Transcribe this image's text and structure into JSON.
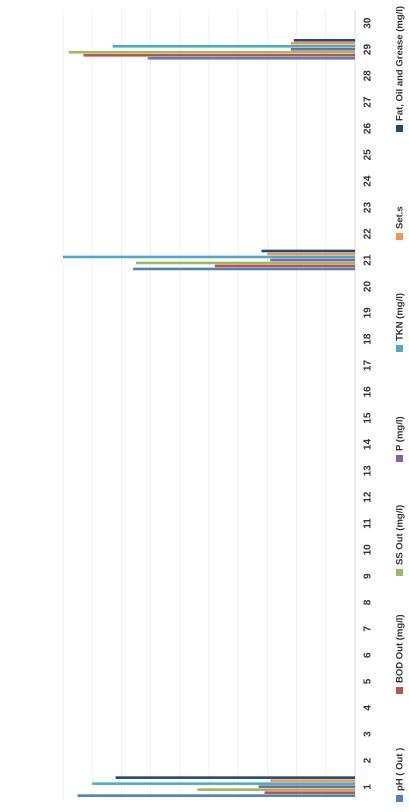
{
  "chart_data": {
    "type": "bar",
    "orientation": "horizontal",
    "grid": true,
    "legend_position": "bottom",
    "categories": [
      "1",
      "2",
      "3",
      "4",
      "5",
      "6",
      "7",
      "8",
      "9",
      "10",
      "11",
      "12",
      "13",
      "14",
      "15",
      "16",
      "17",
      "18",
      "19",
      "20",
      "21",
      "22",
      "23",
      "24",
      "25",
      "26",
      "27",
      "28",
      "29",
      "30"
    ],
    "xlim": [
      0,
      1
    ],
    "series": [
      {
        "name": "pH ( Out )",
        "color": "#4f81bd",
        "values": [
          0.95,
          0,
          0,
          0,
          0,
          0,
          0,
          0,
          0,
          0,
          0,
          0,
          0,
          0,
          0,
          0,
          0,
          0,
          0,
          0,
          0.76,
          0,
          0,
          0,
          0,
          0,
          0,
          0,
          0.71,
          0
        ]
      },
      {
        "name": "BOD Out (mg/l)",
        "color": "#c0504d",
        "values": [
          0.31,
          0,
          0,
          0,
          0,
          0,
          0,
          0,
          0,
          0,
          0,
          0,
          0,
          0,
          0,
          0,
          0,
          0,
          0,
          0,
          0.48,
          0,
          0,
          0,
          0,
          0,
          0,
          0,
          0.93,
          0
        ]
      },
      {
        "name": "SS  Out  (mg/l)",
        "color": "#9bbb59",
        "values": [
          0.54,
          0,
          0,
          0,
          0,
          0,
          0,
          0,
          0,
          0,
          0,
          0,
          0,
          0,
          0,
          0,
          0,
          0,
          0,
          0,
          0.75,
          0,
          0,
          0,
          0,
          0,
          0,
          0,
          0.98,
          0
        ]
      },
      {
        "name": "P (mg/l)",
        "color": "#8064a2",
        "values": [
          0.33,
          0,
          0,
          0,
          0,
          0,
          0,
          0,
          0,
          0,
          0,
          0,
          0,
          0,
          0,
          0,
          0,
          0,
          0,
          0,
          0.29,
          0,
          0,
          0,
          0,
          0,
          0,
          0,
          0.22,
          0
        ]
      },
      {
        "name": "TKN (mg/l)",
        "color": "#4bacc6",
        "values": [
          0.9,
          0,
          0,
          0,
          0,
          0,
          0,
          0,
          0,
          0,
          0,
          0,
          0,
          0,
          0,
          0,
          0,
          0,
          0,
          0,
          1.0,
          0,
          0,
          0,
          0,
          0,
          0,
          0,
          0.83,
          0
        ]
      },
      {
        "name": "Set.s",
        "color": "#f79646",
        "values": [
          0.29,
          0,
          0,
          0,
          0,
          0,
          0,
          0,
          0,
          0,
          0,
          0,
          0,
          0,
          0,
          0,
          0,
          0,
          0,
          0,
          0.3,
          0,
          0,
          0,
          0,
          0,
          0,
          0,
          0.22,
          0
        ]
      },
      {
        "name": "Fat, Oil and  Grease (mg/l)",
        "color": "#1f497d",
        "values": [
          0.82,
          0,
          0,
          0,
          0,
          0,
          0,
          0,
          0,
          0,
          0,
          0,
          0,
          0,
          0,
          0,
          0,
          0,
          0,
          0,
          0.32,
          0,
          0,
          0,
          0,
          0,
          0,
          0,
          0.21,
          0
        ]
      }
    ]
  }
}
